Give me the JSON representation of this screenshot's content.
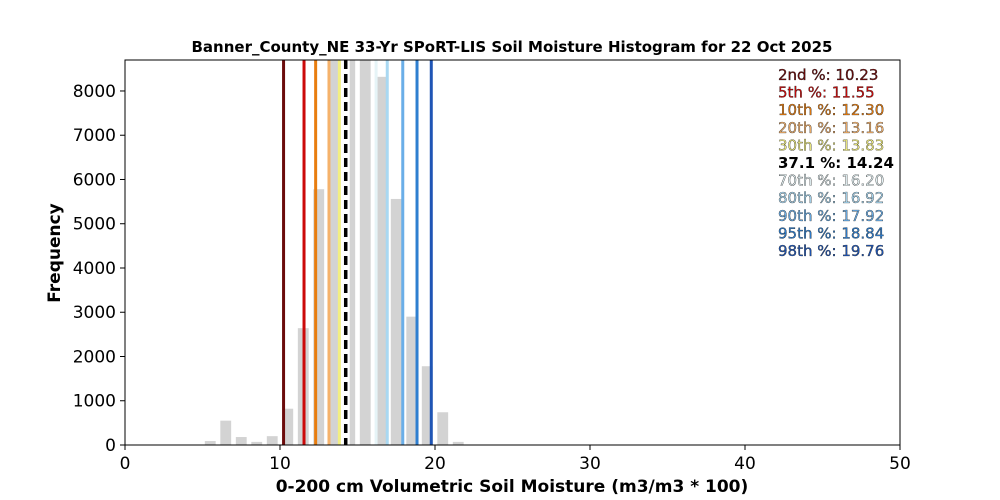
{
  "chart_data": {
    "type": "bar",
    "title": "Banner_County_NE 33-Yr SPoRT-LIS Soil Moisture Histogram for 22 Oct 2025",
    "xlabel": "0-200 cm Volumetric Soil Moisture (m3/m3 * 100)",
    "ylabel": "Frequency",
    "xlim": [
      0,
      50
    ],
    "ylim": [
      0,
      8700
    ],
    "xticks": [
      "0",
      "10",
      "20",
      "30",
      "40",
      "50"
    ],
    "yticks": [
      "0",
      "1000",
      "2000",
      "3000",
      "4000",
      "5000",
      "6000",
      "7000",
      "8000"
    ],
    "grid": false,
    "bar_color": "#d3d3d3",
    "bins": [
      {
        "x": 5.5,
        "count": 90
      },
      {
        "x": 6.5,
        "count": 550
      },
      {
        "x": 7.5,
        "count": 180
      },
      {
        "x": 8.5,
        "count": 70
      },
      {
        "x": 9.5,
        "count": 200
      },
      {
        "x": 10.5,
        "count": 820
      },
      {
        "x": 11.5,
        "count": 2640
      },
      {
        "x": 12.5,
        "count": 5780
      },
      {
        "x": 13.5,
        "count": 8700
      },
      {
        "x": 14.5,
        "count": 8700
      },
      {
        "x": 15.5,
        "count": 8700
      },
      {
        "x": 16.5,
        "count": 8320
      },
      {
        "x": 17.5,
        "count": 5560
      },
      {
        "x": 18.5,
        "count": 2900
      },
      {
        "x": 19.5,
        "count": 1780
      },
      {
        "x": 20.5,
        "count": 740
      },
      {
        "x": 21.5,
        "count": 70
      }
    ],
    "bin_width": 0.7,
    "percentile_lines": [
      {
        "label": "2nd %: 10.23",
        "value": 10.23,
        "color": "#6b0b0b",
        "dashed": false
      },
      {
        "label": "5th %: 11.55",
        "value": 11.55,
        "color": "#cc0a0a",
        "dashed": false
      },
      {
        "label": "10th %: 12.30",
        "value": 12.3,
        "color": "#e87d0f",
        "dashed": false
      },
      {
        "label": "20th %: 13.16",
        "value": 13.16,
        "color": "#f5b26b",
        "dashed": false
      },
      {
        "label": "30th %: 13.83",
        "value": 13.83,
        "color": "#f2ef82",
        "dashed": false
      },
      {
        "label": "37.1 %: 14.24",
        "value": 14.24,
        "color": "#000000",
        "dashed": true
      },
      {
        "label": "70th %: 16.20",
        "value": 16.2,
        "color": "#e6f4f7",
        "dashed": false
      },
      {
        "label": "80th %: 16.92",
        "value": 16.92,
        "color": "#a9d8f2",
        "dashed": false
      },
      {
        "label": "90th %: 17.92",
        "value": 17.92,
        "color": "#6aaee8",
        "dashed": false
      },
      {
        "label": "95th %: 18.84",
        "value": 18.84,
        "color": "#2f7fd0",
        "dashed": false
      },
      {
        "label": "98th %: 19.76",
        "value": 19.76,
        "color": "#1f55b5",
        "dashed": false
      }
    ],
    "legend_position": "top-right"
  }
}
